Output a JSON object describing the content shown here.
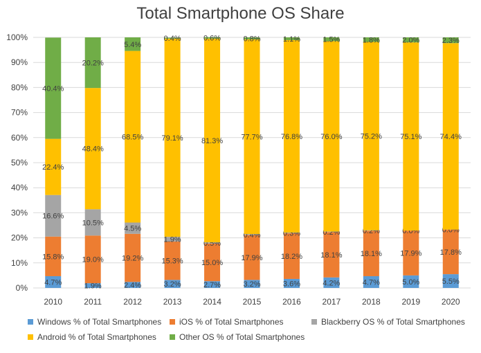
{
  "chart_data": {
    "type": "stacked-bar",
    "title": "Total Smartphone OS Share",
    "categories": [
      "2010",
      "2011",
      "2012",
      "2013",
      "2014",
      "2015",
      "2016",
      "2017",
      "2018",
      "2019",
      "2020"
    ],
    "y_ticks": [
      "0%",
      "10%",
      "20%",
      "30%",
      "40%",
      "50%",
      "60%",
      "70%",
      "80%",
      "90%",
      "100%"
    ],
    "ylim": [
      0,
      100
    ],
    "legend_position": "bottom",
    "series": [
      {
        "name": "Windows % of Total Smartphones",
        "color": "#5B9BD5",
        "values": [
          4.7,
          1.9,
          2.4,
          3.2,
          2.7,
          3.2,
          3.6,
          4.2,
          4.7,
          5.0,
          5.5
        ],
        "labels": [
          "4.7%",
          "1.9%",
          "2.4%",
          "3.2%",
          "2.7%",
          "3.2%",
          "3.6%",
          "4.2%",
          "4.7%",
          "5.0%",
          "5.5%"
        ]
      },
      {
        "name": "iOS % of Total Smartphones",
        "color": "#ED7D31",
        "values": [
          15.8,
          19.0,
          19.2,
          15.3,
          15.0,
          17.9,
          18.2,
          18.1,
          18.1,
          17.9,
          17.8
        ],
        "labels": [
          "15.8%",
          "19.0%",
          "19.2%",
          "15.3%",
          "15.0%",
          "17.9%",
          "18.2%",
          "18.1%",
          "18.1%",
          "17.9%",
          "17.8%"
        ]
      },
      {
        "name": "Blackberry OS % of Total Smartphones",
        "color": "#A5A5A5",
        "values": [
          16.6,
          10.5,
          4.5,
          1.9,
          0.5,
          0.4,
          0.3,
          0.2,
          0.2,
          0.0,
          0.0
        ],
        "labels": [
          "16.6%",
          "10.5%",
          "4.5%",
          "1.9%",
          "0.5%",
          "0.4%",
          "0.3%",
          "0.2%",
          "0.2%",
          "0.0%",
          "0.0%"
        ]
      },
      {
        "name": "Android % of Total Smartphones",
        "color": "#FFC000",
        "values": [
          22.4,
          48.4,
          68.5,
          79.1,
          81.3,
          77.7,
          76.8,
          76.0,
          75.2,
          75.1,
          74.4
        ],
        "labels": [
          "22.4%",
          "48.4%",
          "68.5%",
          "79.1%",
          "81.3%",
          "77.7%",
          "76.8%",
          "76.0%",
          "75.2%",
          "75.1%",
          "74.4%"
        ]
      },
      {
        "name": "Other OS % of Total Smartphones",
        "color": "#70AD47",
        "values": [
          40.4,
          20.2,
          5.4,
          0.4,
          0.6,
          0.8,
          1.1,
          1.5,
          1.8,
          2.0,
          2.3
        ],
        "labels": [
          "40.4%",
          "20.2%",
          "5.4%",
          "0.4%",
          "0.6%",
          "0.8%",
          "1.1%",
          "1.5%",
          "1.8%",
          "2.0%",
          "2.3%"
        ]
      }
    ],
    "legend_order": [
      0,
      1,
      2,
      3,
      4
    ]
  }
}
